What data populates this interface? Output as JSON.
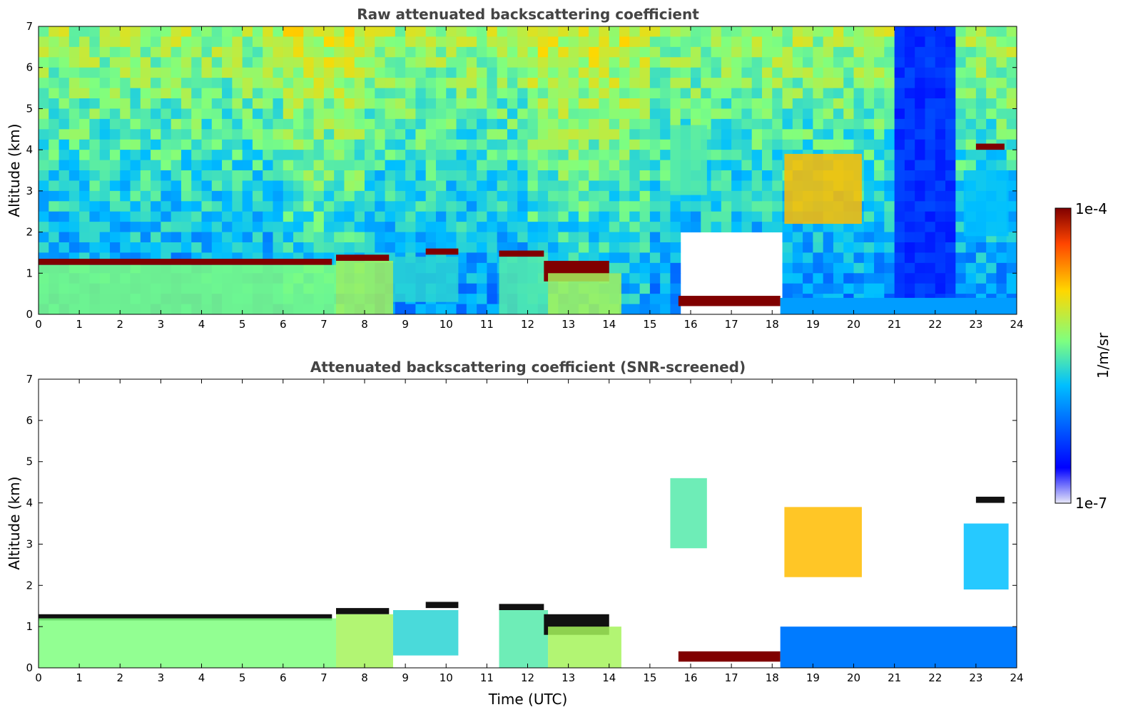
{
  "chart_data": [
    {
      "type": "heatmap",
      "title": "Raw attenuated backscattering coefficient",
      "xlabel": "",
      "ylabel": "Altitude (km)",
      "xlim": [
        0,
        24
      ],
      "ylim": [
        0,
        7
      ],
      "xticks": [
        "0",
        "1",
        "2",
        "3",
        "4",
        "5",
        "6",
        "7",
        "8",
        "9",
        "10",
        "11",
        "12",
        "13",
        "14",
        "15",
        "16",
        "17",
        "18",
        "19",
        "20",
        "21",
        "22",
        "23",
        "24"
      ],
      "yticks": [
        "0",
        "1",
        "2",
        "3",
        "4",
        "5",
        "6",
        "7"
      ],
      "screened": false,
      "features": [
        {
          "kind": "cloud_base",
          "x": [
            0,
            7.2
          ],
          "y": [
            1.2,
            1.35
          ],
          "level": 1.0
        },
        {
          "kind": "boundary_layer",
          "x": [
            0,
            7.3
          ],
          "y": [
            0,
            1.2
          ],
          "level": 0.55
        },
        {
          "kind": "cloud_base",
          "x": [
            7.3,
            8.6
          ],
          "y": [
            1.3,
            1.45
          ],
          "level": 1.0
        },
        {
          "kind": "boundary_layer",
          "x": [
            7.3,
            8.7
          ],
          "y": [
            0,
            1.3
          ],
          "level": 0.6
        },
        {
          "kind": "boundary_layer",
          "x": [
            8.7,
            10.3
          ],
          "y": [
            0.3,
            1.4
          ],
          "level": 0.45
        },
        {
          "kind": "cloud_base",
          "x": [
            9.5,
            10.3
          ],
          "y": [
            1.45,
            1.6
          ],
          "level": 1.0
        },
        {
          "kind": "cloud_base",
          "x": [
            11.3,
            12.4
          ],
          "y": [
            1.4,
            1.55
          ],
          "level": 1.0
        },
        {
          "kind": "boundary_layer",
          "x": [
            11.3,
            12.5
          ],
          "y": [
            0,
            1.4
          ],
          "level": 0.5
        },
        {
          "kind": "cloud_base",
          "x": [
            12.4,
            14
          ],
          "y": [
            0.8,
            1.3
          ],
          "level": 1.0
        },
        {
          "kind": "boundary_layer",
          "x": [
            12.5,
            14.3
          ],
          "y": [
            0,
            1.0
          ],
          "level": 0.6
        },
        {
          "kind": "aerosol_layer",
          "x": [
            15.7,
            18.2
          ],
          "y": [
            0.2,
            0.45
          ],
          "level": 1.0
        },
        {
          "kind": "cloud",
          "x": [
            18.3,
            20.2
          ],
          "y": [
            2.2,
            3.9
          ],
          "level": 0.75
        },
        {
          "kind": "cloud",
          "x": [
            15.5,
            16.4
          ],
          "y": [
            2.9,
            4.6
          ],
          "level": 0.5
        },
        {
          "kind": "cloud",
          "x": [
            22.7,
            23.8
          ],
          "y": [
            1.9,
            3.5
          ],
          "level": 0.4
        },
        {
          "kind": "cloud_base",
          "x": [
            23,
            23.7
          ],
          "y": [
            4.0,
            4.15
          ],
          "level": 1.0
        },
        {
          "kind": "surface_layer",
          "x": [
            18.2,
            24
          ],
          "y": [
            0,
            0.4
          ],
          "level": 0.35
        }
      ]
    },
    {
      "type": "heatmap",
      "title": "Attenuated backscattering coefficient (SNR-screened)",
      "xlabel": "Time (UTC)",
      "ylabel": "Altitude (km)",
      "xlim": [
        0,
        24
      ],
      "ylim": [
        0,
        7
      ],
      "xticks": [
        "0",
        "1",
        "2",
        "3",
        "4",
        "5",
        "6",
        "7",
        "8",
        "9",
        "10",
        "11",
        "12",
        "13",
        "14",
        "15",
        "16",
        "17",
        "18",
        "19",
        "20",
        "21",
        "22",
        "23",
        "24"
      ],
      "yticks": [
        "0",
        "1",
        "2",
        "3",
        "4",
        "5",
        "6",
        "7"
      ],
      "screened": true,
      "features": [
        {
          "kind": "cloud_base",
          "x": [
            0,
            7.2
          ],
          "y": [
            1.15,
            1.3
          ],
          "level": 1.0
        },
        {
          "kind": "boundary_layer",
          "x": [
            0,
            7.3
          ],
          "y": [
            0,
            1.2
          ],
          "level": 0.55
        },
        {
          "kind": "cloud_base",
          "x": [
            7.3,
            8.6
          ],
          "y": [
            1.3,
            1.45
          ],
          "level": 1.0
        },
        {
          "kind": "boundary_layer",
          "x": [
            7.3,
            8.7
          ],
          "y": [
            0,
            1.3
          ],
          "level": 0.6
        },
        {
          "kind": "boundary_layer",
          "x": [
            8.7,
            10.3
          ],
          "y": [
            0.3,
            1.4
          ],
          "level": 0.45
        },
        {
          "kind": "cloud_base",
          "x": [
            9.5,
            10.3
          ],
          "y": [
            1.45,
            1.6
          ],
          "level": 1.0
        },
        {
          "kind": "cloud_base",
          "x": [
            11.3,
            12.4
          ],
          "y": [
            1.4,
            1.55
          ],
          "level": 1.0
        },
        {
          "kind": "boundary_layer",
          "x": [
            11.3,
            12.5
          ],
          "y": [
            0,
            1.4
          ],
          "level": 0.5
        },
        {
          "kind": "cloud_base",
          "x": [
            12.4,
            14
          ],
          "y": [
            0.8,
            1.3
          ],
          "level": 1.0
        },
        {
          "kind": "boundary_layer",
          "x": [
            12.5,
            14.3
          ],
          "y": [
            0,
            1.0
          ],
          "level": 0.6
        },
        {
          "kind": "aerosol_layer",
          "x": [
            15.7,
            18.2
          ],
          "y": [
            0.15,
            0.4
          ],
          "level": 1.0
        },
        {
          "kind": "cloud",
          "x": [
            18.3,
            20.2
          ],
          "y": [
            2.2,
            3.9
          ],
          "level": 0.75
        },
        {
          "kind": "cloud",
          "x": [
            15.5,
            16.4
          ],
          "y": [
            2.9,
            4.6
          ],
          "level": 0.5
        },
        {
          "kind": "cloud",
          "x": [
            22.7,
            23.8
          ],
          "y": [
            1.9,
            3.5
          ],
          "level": 0.4
        },
        {
          "kind": "cloud_base",
          "x": [
            23,
            23.7
          ],
          "y": [
            4.0,
            4.15
          ],
          "level": 1.0
        },
        {
          "kind": "surface_layer",
          "x": [
            18.2,
            24
          ],
          "y": [
            0,
            1.0
          ],
          "level": 0.3
        }
      ]
    }
  ],
  "colorbar": {
    "label": "1/m/sr",
    "max_label": "1e-4",
    "min_label": "1e-7",
    "colormap": [
      "#e8e8f8",
      "#0000ff",
      "#00bfff",
      "#7fff7f",
      "#ffd700",
      "#ff4500",
      "#800000"
    ]
  }
}
